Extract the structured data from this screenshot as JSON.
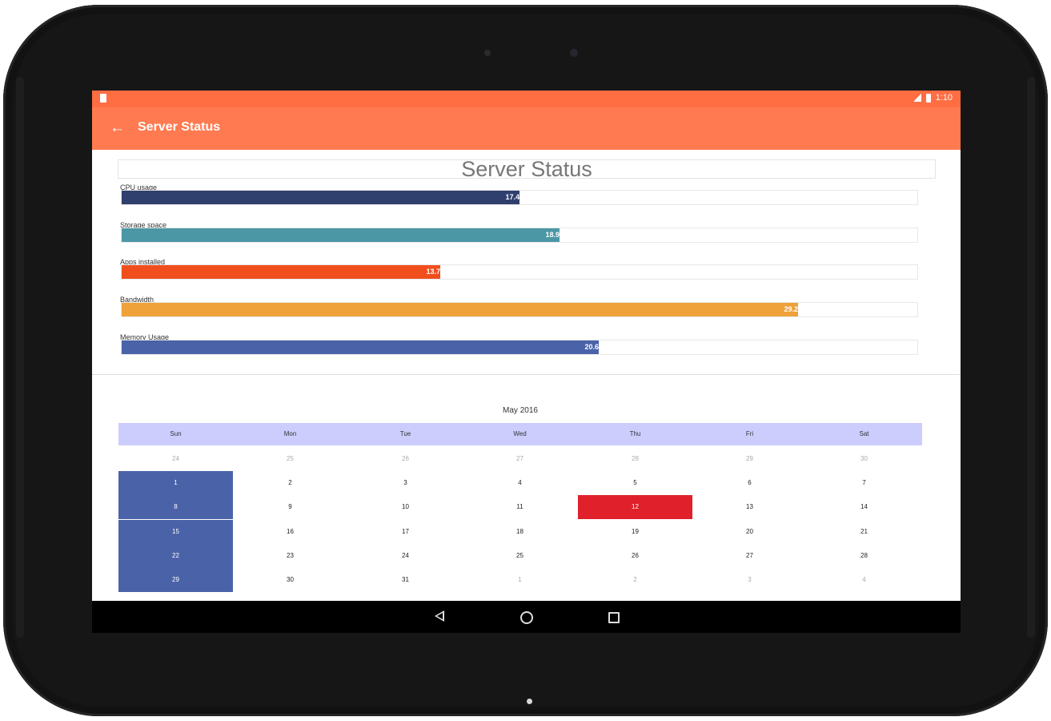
{
  "statusbar": {
    "time": "1:10"
  },
  "appbar": {
    "back_icon": "arrow-back-icon",
    "title": "Server Status"
  },
  "chart_data": {
    "type": "bar",
    "title": "Server Status",
    "categories": [
      "CPU usage",
      "Storage space",
      "Apps installed",
      "Bandwidth",
      "Memory Usage"
    ],
    "value_labels": [
      "17.4",
      "18.9",
      "13.7",
      "29.2",
      "20.6"
    ],
    "fractions": [
      0.5,
      0.55,
      0.4,
      0.85,
      0.6
    ],
    "colors": [
      "#2f3f6e",
      "#4c97a6",
      "#f04e1d",
      "#efa23a",
      "#4a62a8"
    ]
  },
  "calendar": {
    "month_label": "May 2016",
    "weekdays": [
      "Sun",
      "Mon",
      "Tue",
      "Wed",
      "Thu",
      "Fri",
      "Sat"
    ],
    "weeks": [
      [
        "24",
        "25",
        "26",
        "27",
        "28",
        "29",
        "30"
      ],
      [
        "1",
        "2",
        "3",
        "4",
        "5",
        "6",
        "7"
      ],
      [
        "8",
        "9",
        "10",
        "11",
        "12",
        "13",
        "14"
      ],
      [
        "15",
        "16",
        "17",
        "18",
        "19",
        "20",
        "21"
      ],
      [
        "22",
        "23",
        "24",
        "25",
        "26",
        "27",
        "28"
      ],
      [
        "29",
        "30",
        "31",
        "1",
        "2",
        "3",
        "4"
      ]
    ],
    "dim_cells": [
      "0-0",
      "0-1",
      "0-2",
      "0-3",
      "0-4",
      "0-5",
      "0-6",
      "5-3",
      "5-4",
      "5-5",
      "5-6"
    ],
    "selected_cells": [
      "1-0",
      "2-0",
      "3-0",
      "4-0",
      "5-0"
    ],
    "today_cell": "2-4",
    "colors": {
      "header_bg": "#cccdfd",
      "selected_bg": "#4a62a8",
      "today_bg": "#e0202a"
    }
  },
  "navbar": {
    "back_icon": "nav-back-icon",
    "home_icon": "nav-home-icon",
    "recents_icon": "nav-recents-icon"
  }
}
